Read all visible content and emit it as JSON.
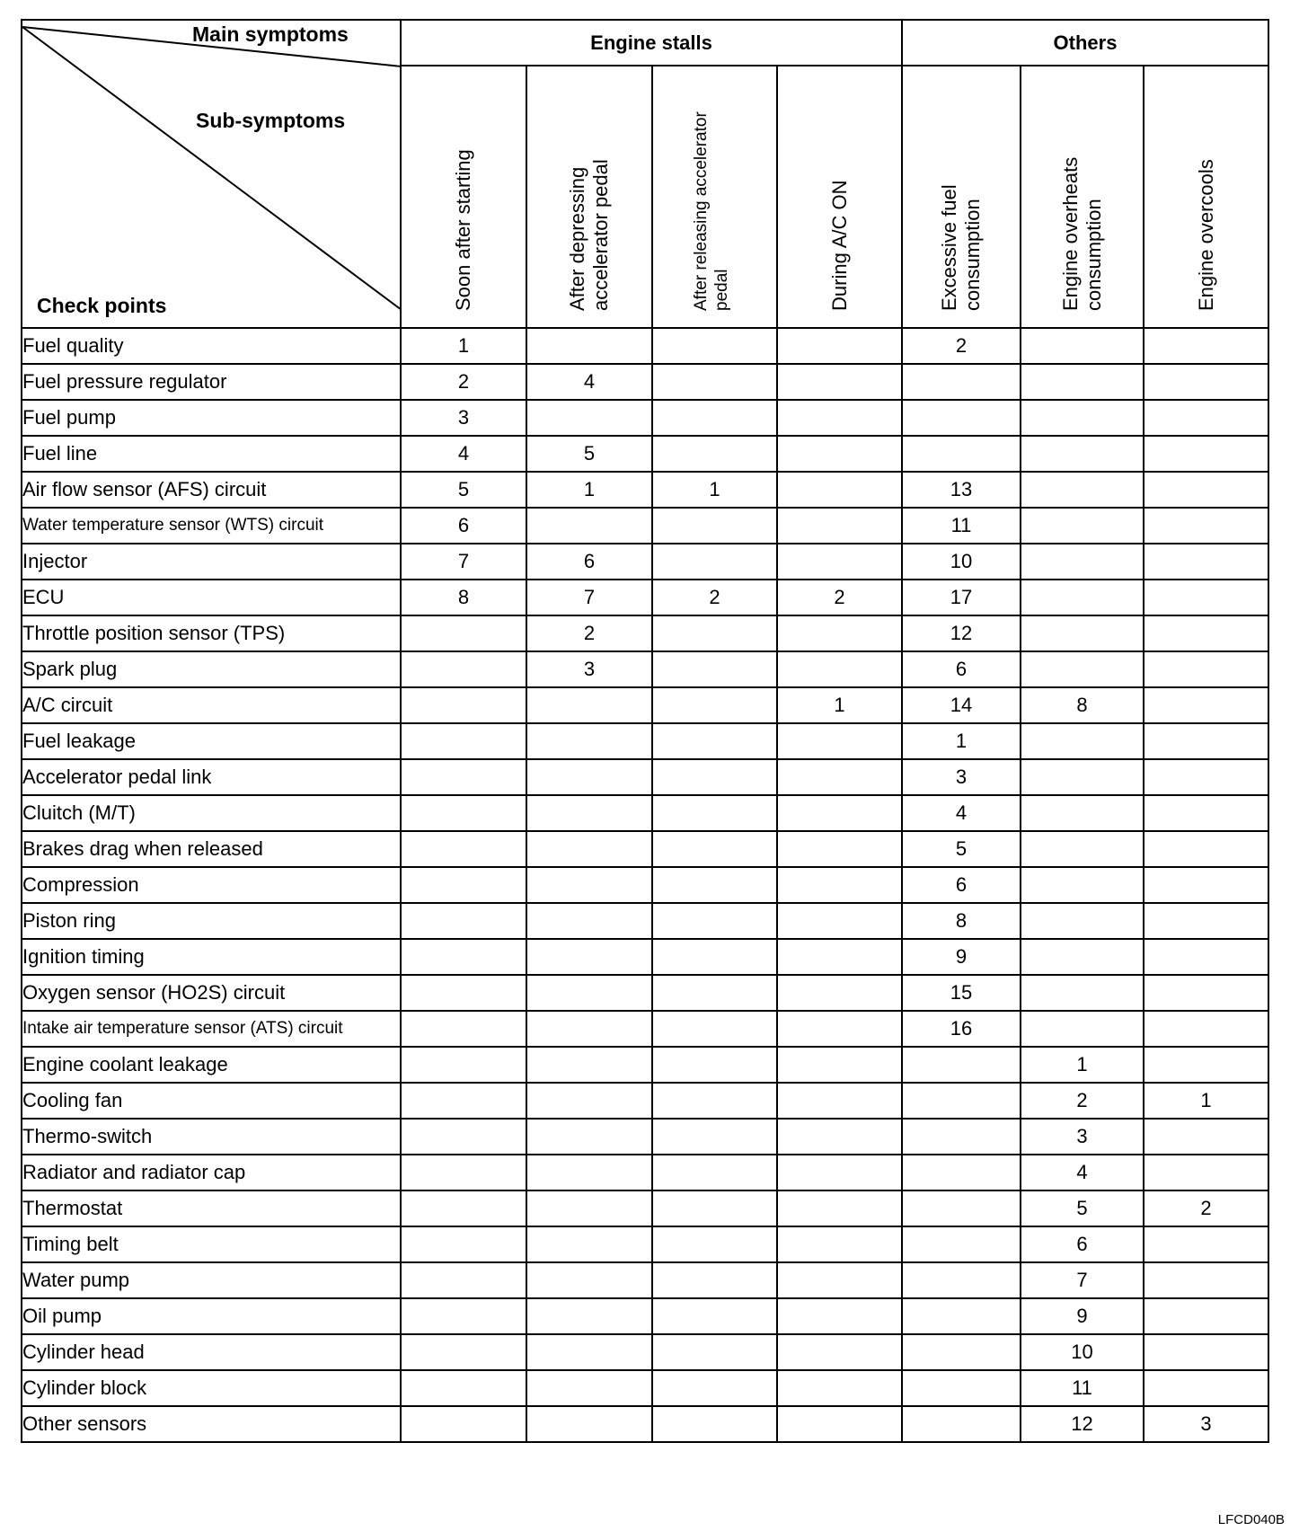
{
  "header": {
    "main_symptoms": "Main symptoms",
    "sub_symptoms": "Sub-symptoms",
    "check_points": "Check points",
    "groups": [
      {
        "label": "Engine stalls",
        "span": 4
      },
      {
        "label": "Others",
        "span": 3
      }
    ],
    "columns": [
      {
        "lines": [
          "Soon after starting"
        ]
      },
      {
        "lines": [
          "After depressing",
          "accelerator pedal"
        ]
      },
      {
        "lines": [
          "After releasing accelerator",
          "pedal"
        ]
      },
      {
        "lines": [
          "During A/C ON"
        ]
      },
      {
        "lines": [
          "Excessive fuel",
          "consumption"
        ]
      },
      {
        "lines": [
          "Engine overheats",
          "consumption"
        ]
      },
      {
        "lines": [
          "Engine overcools"
        ]
      }
    ]
  },
  "rows": [
    {
      "name": "Fuel quality",
      "values": [
        "1",
        "",
        "",
        "",
        "2",
        "",
        ""
      ]
    },
    {
      "name": "Fuel pressure regulator",
      "values": [
        "2",
        "4",
        "",
        "",
        "",
        "",
        ""
      ]
    },
    {
      "name": "Fuel pump",
      "values": [
        "3",
        "",
        "",
        "",
        "",
        "",
        ""
      ]
    },
    {
      "name": "Fuel line",
      "values": [
        "4",
        "5",
        "",
        "",
        "",
        "",
        ""
      ]
    },
    {
      "name": "Air flow sensor (AFS) circuit",
      "values": [
        "5",
        "1",
        "1",
        "",
        "13",
        "",
        ""
      ]
    },
    {
      "name": "Water temperature sensor (WTS) circuit",
      "values": [
        "6",
        "",
        "",
        "",
        "11",
        "",
        ""
      ]
    },
    {
      "name": "Injector",
      "values": [
        "7",
        "6",
        "",
        "",
        "10",
        "",
        ""
      ]
    },
    {
      "name": "ECU",
      "values": [
        "8",
        "7",
        "2",
        "2",
        "17",
        "",
        ""
      ]
    },
    {
      "name": "Throttle position sensor (TPS)",
      "values": [
        "",
        "2",
        "",
        "",
        "12",
        "",
        ""
      ]
    },
    {
      "name": "Spark plug",
      "values": [
        "",
        "3",
        "",
        "",
        "6",
        "",
        ""
      ]
    },
    {
      "name": "A/C circuit",
      "values": [
        "",
        "",
        "",
        "1",
        "14",
        "8",
        ""
      ]
    },
    {
      "name": "Fuel leakage",
      "values": [
        "",
        "",
        "",
        "",
        "1",
        "",
        ""
      ]
    },
    {
      "name": "Accelerator pedal link",
      "values": [
        "",
        "",
        "",
        "",
        "3",
        "",
        ""
      ]
    },
    {
      "name": "Cluitch (M/T)",
      "values": [
        "",
        "",
        "",
        "",
        "4",
        "",
        ""
      ]
    },
    {
      "name": "Brakes drag when released",
      "values": [
        "",
        "",
        "",
        "",
        "5",
        "",
        ""
      ]
    },
    {
      "name": "Compression",
      "values": [
        "",
        "",
        "",
        "",
        "6",
        "",
        ""
      ]
    },
    {
      "name": "Piston ring",
      "values": [
        "",
        "",
        "",
        "",
        "8",
        "",
        ""
      ]
    },
    {
      "name": "Ignition timing",
      "values": [
        "",
        "",
        "",
        "",
        "9",
        "",
        ""
      ]
    },
    {
      "name": "Oxygen sensor (HO2S) circuit",
      "values": [
        "",
        "",
        "",
        "",
        "15",
        "",
        ""
      ]
    },
    {
      "name": "Intake air temperature sensor (ATS) circuit",
      "values": [
        "",
        "",
        "",
        "",
        "16",
        "",
        ""
      ]
    },
    {
      "name": "Engine coolant leakage",
      "values": [
        "",
        "",
        "",
        "",
        "",
        "1",
        ""
      ]
    },
    {
      "name": "Cooling fan",
      "values": [
        "",
        "",
        "",
        "",
        "",
        "2",
        "1"
      ]
    },
    {
      "name": "Thermo-switch",
      "values": [
        "",
        "",
        "",
        "",
        "",
        "3",
        ""
      ]
    },
    {
      "name": "Radiator and radiator cap",
      "values": [
        "",
        "",
        "",
        "",
        "",
        "4",
        ""
      ]
    },
    {
      "name": "Thermostat",
      "values": [
        "",
        "",
        "",
        "",
        "",
        "5",
        "2"
      ]
    },
    {
      "name": "Timing belt",
      "values": [
        "",
        "",
        "",
        "",
        "",
        "6",
        ""
      ]
    },
    {
      "name": "Water pump",
      "values": [
        "",
        "",
        "",
        "",
        "",
        "7",
        ""
      ]
    },
    {
      "name": "Oil pump",
      "values": [
        "",
        "",
        "",
        "",
        "",
        "9",
        ""
      ]
    },
    {
      "name": "Cylinder head",
      "values": [
        "",
        "",
        "",
        "",
        "",
        "10",
        ""
      ]
    },
    {
      "name": "Cylinder block",
      "values": [
        "",
        "",
        "",
        "",
        "",
        "11",
        ""
      ]
    },
    {
      "name": "Other sensors",
      "values": [
        "",
        "",
        "",
        "",
        "",
        "12",
        "3"
      ]
    }
  ],
  "figure_code": "LFCD040B"
}
